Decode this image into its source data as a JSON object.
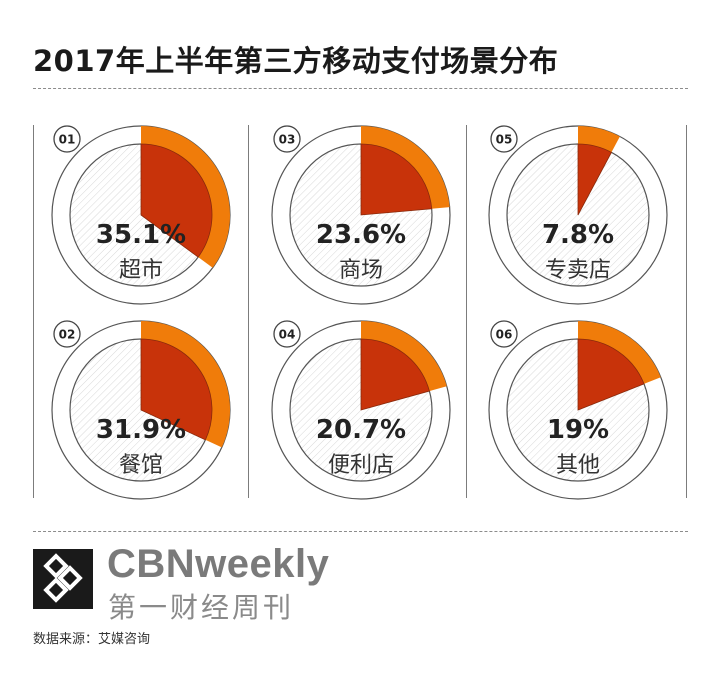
{
  "title": "2017年上半年第三方移动支付场景分布",
  "colors": {
    "slice_fill": "#c8330a",
    "slice_outer": "#f07c0a",
    "ring_stroke": "#555555",
    "hatch": "#d8d8d8"
  },
  "chart_data": {
    "type": "pie",
    "title": "2017年上半年第三方移动支付场景分布",
    "grid": false,
    "items": [
      {
        "index": "01",
        "name": "超市",
        "value": 35.1,
        "value_label": "35.1%"
      },
      {
        "index": "02",
        "name": "餐馆",
        "value": 31.9,
        "value_label": "31.9%"
      },
      {
        "index": "03",
        "name": "商场",
        "value": 23.6,
        "value_label": "23.6%"
      },
      {
        "index": "04",
        "name": "便利店",
        "value": 20.7,
        "value_label": "20.7%"
      },
      {
        "index": "05",
        "name": "专卖店",
        "value": 7.8,
        "value_label": "7.8%"
      },
      {
        "index": "06",
        "name": "其他",
        "value": 19,
        "value_label": "19%"
      }
    ]
  },
  "brand": {
    "name": "CBNweekly",
    "name_cn": "第一财经周刊"
  },
  "source": "数据来源：艾媒咨询"
}
